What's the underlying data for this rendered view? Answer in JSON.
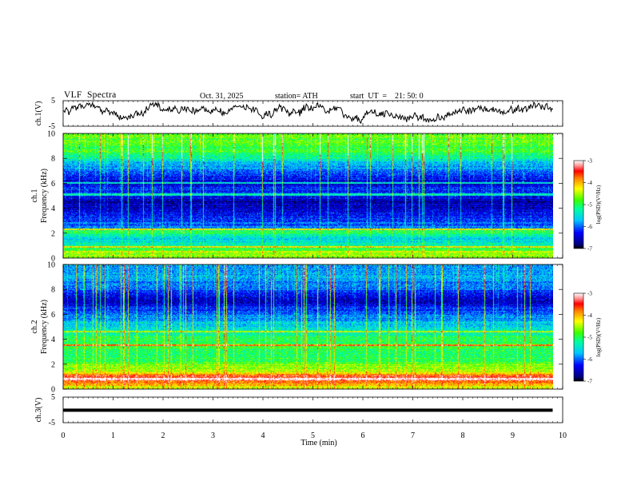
{
  "header": {
    "title": "VLF  Spectra",
    "date": "Oct. 31, 2025",
    "station": "station= ATH",
    "start_ut": "start  UT  =    21: 50: 0"
  },
  "chart_data": [
    {
      "type": "line",
      "panel": "ch1-waveform",
      "ylabel": "ch.1(V)",
      "ylim": [
        -5,
        5
      ],
      "y_ticks": [
        "5",
        "-5"
      ],
      "xlim": [
        0,
        10
      ],
      "x_end": 9.8,
      "description_series": "noisy waveform roughly between -4 and 4 V"
    },
    {
      "type": "heatmap",
      "panel": "ch1-spectrogram",
      "ylabel_top": "ch.1",
      "ylabel": "Frequency  (kHz)",
      "ylim": [
        0,
        10
      ],
      "y_ticks": [
        "0",
        "2",
        "4",
        "6",
        "8",
        "10"
      ],
      "xlim": [
        0,
        10
      ],
      "x_end": 9.8,
      "colorbar": {
        "label": "log(PSD)(V²/Hz)",
        "range": [
          -7,
          -3
        ],
        "ticks": [
          "-3",
          "-4",
          "-5",
          "-6",
          "-7"
        ]
      },
      "profile_khz": [
        0.2,
        0.6,
        1.0,
        1.5,
        2.0,
        2.5,
        3.0,
        3.5,
        4.0,
        4.5,
        5.0,
        5.5,
        6.0,
        6.5,
        7.0,
        7.5,
        8.0,
        8.5,
        9.0,
        9.5,
        10.0
      ],
      "profile_logpsd": [
        -4.6,
        -4.8,
        -5.3,
        -5.6,
        -5.0,
        -5.9,
        -6.1,
        -6.3,
        -6.6,
        -6.6,
        -6.3,
        -6.2,
        -6.5,
        -6.2,
        -6.0,
        -5.7,
        -5.3,
        -5.0,
        -4.9,
        -4.8,
        -4.8
      ],
      "lines_khz": [
        {
          "f": 2.1,
          "v": -5.0
        },
        {
          "f": 2.3,
          "v": -4.2
        },
        {
          "f": 0.9,
          "v": -4.2
        },
        {
          "f": 0.5,
          "v": -4.3
        },
        {
          "f": 5.1,
          "v": -5.4
        },
        {
          "f": 6.0,
          "v": -5.5
        }
      ]
    },
    {
      "type": "heatmap",
      "panel": "ch2-spectrogram",
      "ylabel_top": "ch.2",
      "ylabel": "Frequency  (kHz)",
      "ylim": [
        0,
        10
      ],
      "y_ticks": [
        "0",
        "2",
        "4",
        "6",
        "8",
        "10"
      ],
      "xlim": [
        0,
        10
      ],
      "x_end": 9.8,
      "colorbar": {
        "label": "log(PSD)(V²/Hz)",
        "range": [
          -7,
          -3
        ],
        "ticks": [
          "-3",
          "-4",
          "-5",
          "-6",
          "-7"
        ]
      },
      "profile_khz": [
        0.1,
        0.5,
        0.8,
        1.0,
        1.5,
        2.0,
        2.5,
        3.0,
        3.5,
        4.0,
        4.5,
        5.0,
        5.5,
        6.0,
        6.5,
        7.0,
        7.5,
        8.0,
        8.5,
        9.0,
        9.5,
        10.0
      ],
      "profile_logpsd": [
        -4.4,
        -3.8,
        -3.3,
        -3.7,
        -4.6,
        -4.8,
        -5.0,
        -5.0,
        -4.9,
        -5.0,
        -5.3,
        -5.5,
        -5.8,
        -5.9,
        -6.3,
        -6.6,
        -6.4,
        -6.0,
        -5.9,
        -5.8,
        -5.8,
        -5.8
      ],
      "lines_khz": [
        {
          "f": 0.8,
          "v": -3.1
        },
        {
          "f": 1.0,
          "v": -3.4
        },
        {
          "f": 2.0,
          "v": -4.6
        },
        {
          "f": 3.5,
          "v": -3.8
        },
        {
          "f": 4.6,
          "v": -4.5
        }
      ]
    },
    {
      "type": "line",
      "panel": "ch3-waveform",
      "ylabel": "ch.3(V)",
      "ylim": [
        -5,
        5
      ],
      "y_ticks": [
        "5",
        "-5"
      ],
      "xlim": [
        0,
        10
      ],
      "x_end": 9.8,
      "level_v": -0.1,
      "xlabel": "Time  (min)",
      "x_ticks": [
        "0",
        "1",
        "2",
        "3",
        "4",
        "5",
        "6",
        "7",
        "8",
        "9",
        "10"
      ]
    }
  ]
}
